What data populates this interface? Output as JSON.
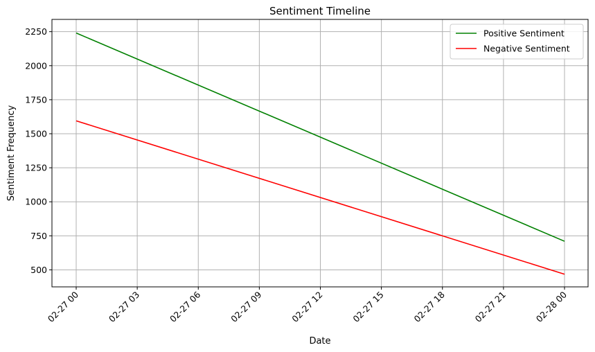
{
  "chart_data": {
    "type": "line",
    "title": "Sentiment Timeline",
    "xlabel": "Date",
    "ylabel": "Sentiment Frequency",
    "x": [
      "02-27 00",
      "02-28 00"
    ],
    "x_ticks": [
      "02-27 00",
      "02-27 03",
      "02-27 06",
      "02-27 09",
      "02-27 12",
      "02-27 15",
      "02-27 18",
      "02-27 21",
      "02-28 00"
    ],
    "y_ticks": [
      500,
      750,
      1000,
      1250,
      1500,
      1750,
      2000,
      2250
    ],
    "ylim": [
      375,
      2340
    ],
    "grid": true,
    "legend_position": "top-right",
    "series": [
      {
        "name": "Positive Sentiment",
        "color": "#008000",
        "values": [
          2240,
          710
        ]
      },
      {
        "name": "Negative Sentiment",
        "color": "#ff0000",
        "values": [
          1595,
          468
        ]
      }
    ]
  }
}
